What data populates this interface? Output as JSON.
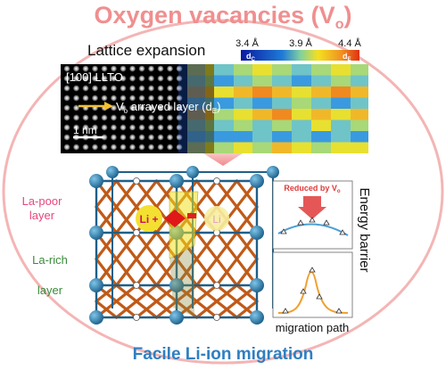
{
  "title": "Oxygen vacancies (V",
  "title_sub": "o",
  "title_close": ")",
  "footer": "Facile Li-ion migration",
  "lattice": {
    "label": "Lattice expansion",
    "scale_ticks": [
      "3.4 Å",
      "3.9 Å",
      "4.4 Å"
    ],
    "scale_left_label": "d",
    "scale_left_sub": "C",
    "scale_right_label": "d",
    "scale_right_sub": "E",
    "image_label": "[100] LLTO",
    "arrow_label_prefix": "V",
    "arrow_label_sub": "o",
    "arrow_label_mid": " arrayed layer (d",
    "arrow_label_sub2": "E",
    "arrow_label_end": ")",
    "scalebar": "1 nm"
  },
  "structure": {
    "label_poor": [
      "La-poor",
      "layer"
    ],
    "label_rich": [
      "La-rich",
      "layer"
    ],
    "li_ion": "Li +",
    "li_ghost": "Li"
  },
  "barrier": {
    "reduced_label": "Reduced by V",
    "reduced_sub": "o",
    "side_label": "Energy barrier",
    "axis_label": "migration path"
  },
  "colors": {
    "title": "#f08f8f",
    "footer": "#2f7fc1",
    "la_poor": "#e8477a",
    "la_rich": "#3b8a3b",
    "reduced": "#e03a3a",
    "circle": "#f4b5b5",
    "curve_blue": "#4a9fd6",
    "curve_orange": "#f0a030"
  }
}
